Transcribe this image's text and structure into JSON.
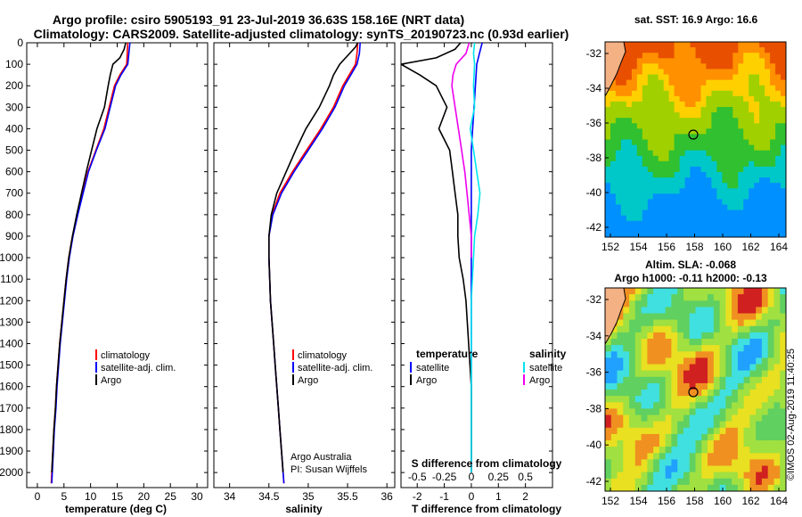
{
  "title_line1": "Argo profile: csiro 5905193_91 23-Jul-2019 36.63S 158.16E (NRT data)",
  "title_line2": "Climatology: CARS2009. Satellite-adjusted climatology: synTS_20190723.nc (0.93d earlier)",
  "credit_line1": "Argo Australia",
  "credit_line2": "PI: Susan Wijffels",
  "stamp": "©IMOS 02-Aug-2019 11:40:25",
  "colors": {
    "climatology": "#ff0000",
    "satellite": "#0000ff",
    "argo": "#000000",
    "cyan": "#00e5ee",
    "magenta": "#ee00ee"
  },
  "depth_ticks": [
    "0",
    "100",
    "200",
    "300",
    "400",
    "500",
    "600",
    "700",
    "800",
    "900",
    "1000",
    "1100",
    "1200",
    "1300",
    "1400",
    "1500",
    "1600",
    "1700",
    "1800",
    "1900",
    "2000"
  ],
  "chart_data": [
    {
      "type": "line",
      "name": "temperature",
      "xlabel": "temperature (deg C)",
      "xlim": [
        -2,
        32
      ],
      "ylim": [
        2070,
        0
      ],
      "xticks": [
        "0",
        "5",
        "10",
        "15",
        "20",
        "25",
        "30"
      ],
      "legend": [
        "climatology",
        "satellite-adj. clim.",
        "Argo"
      ],
      "series": [
        {
          "name": "climatology",
          "color": "#ff0000",
          "points": [
            [
              17,
              0
            ],
            [
              16.9,
              50
            ],
            [
              16.8,
              100
            ],
            [
              15.5,
              150
            ],
            [
              14.5,
              200
            ],
            [
              13.5,
              300
            ],
            [
              12.5,
              400
            ],
            [
              11,
              500
            ],
            [
              9.5,
              600
            ],
            [
              8.5,
              700
            ],
            [
              7.5,
              800
            ],
            [
              6.6,
              900
            ],
            [
              5.9,
              1000
            ],
            [
              5.4,
              1100
            ],
            [
              5,
              1200
            ],
            [
              4.6,
              1300
            ],
            [
              4.2,
              1400
            ],
            [
              3.9,
              1500
            ],
            [
              3.6,
              1600
            ],
            [
              3.4,
              1700
            ],
            [
              3.1,
              1800
            ],
            [
              2.9,
              1900
            ],
            [
              2.7,
              2000
            ],
            [
              2.6,
              2050
            ]
          ]
        },
        {
          "name": "satellite-adj. clim.",
          "color": "#0000ff",
          "points": [
            [
              17.4,
              0
            ],
            [
              17.2,
              50
            ],
            [
              17,
              100
            ],
            [
              15.7,
              150
            ],
            [
              14.7,
              200
            ],
            [
              13.7,
              300
            ],
            [
              12.7,
              400
            ],
            [
              11.1,
              500
            ],
            [
              9.6,
              600
            ],
            [
              8.6,
              700
            ],
            [
              7.6,
              800
            ],
            [
              6.7,
              900
            ],
            [
              6,
              1000
            ],
            [
              5.5,
              1100
            ],
            [
              5.1,
              1200
            ],
            [
              4.7,
              1300
            ],
            [
              4.3,
              1400
            ],
            [
              4,
              1500
            ],
            [
              3.7,
              1600
            ],
            [
              3.5,
              1700
            ],
            [
              3.2,
              1800
            ],
            [
              3,
              1900
            ],
            [
              2.8,
              2000
            ],
            [
              2.7,
              2050
            ]
          ]
        },
        {
          "name": "Argo",
          "color": "#000000",
          "points": [
            [
              16.6,
              0
            ],
            [
              16.3,
              30
            ],
            [
              15.5,
              70
            ],
            [
              14.2,
              100
            ],
            [
              13.7,
              150
            ],
            [
              13.3,
              200
            ],
            [
              12.6,
              300
            ],
            [
              11.2,
              400
            ],
            [
              10.2,
              500
            ],
            [
              9.2,
              600
            ],
            [
              8.3,
              700
            ],
            [
              7.4,
              800
            ],
            [
              6.6,
              900
            ],
            [
              5.9,
              1000
            ],
            [
              5.4,
              1100
            ],
            [
              5,
              1200
            ],
            [
              4.6,
              1300
            ],
            [
              4.2,
              1400
            ],
            [
              3.9,
              1500
            ],
            [
              3.6,
              1600
            ],
            [
              3.4,
              1700
            ],
            [
              3.1,
              1800
            ],
            [
              2.9,
              1900
            ],
            [
              2.7,
              2000
            ]
          ]
        }
      ]
    },
    {
      "type": "line",
      "name": "salinity",
      "xlabel": "salinity",
      "xlim": [
        33.8,
        36.1
      ],
      "ylim": [
        2070,
        0
      ],
      "xticks": [
        "34",
        "34.5",
        "35",
        "35.5",
        "36"
      ],
      "legend": [
        "climatology",
        "satellite-adj. clim.",
        "Argo"
      ],
      "series": [
        {
          "name": "climatology",
          "color": "#ff0000",
          "points": [
            [
              35.63,
              0
            ],
            [
              35.62,
              50
            ],
            [
              35.6,
              100
            ],
            [
              35.52,
              150
            ],
            [
              35.44,
              200
            ],
            [
              35.32,
              300
            ],
            [
              35.16,
              400
            ],
            [
              34.98,
              500
            ],
            [
              34.8,
              600
            ],
            [
              34.64,
              700
            ],
            [
              34.54,
              800
            ],
            [
              34.5,
              900
            ],
            [
              34.5,
              1000
            ],
            [
              34.51,
              1100
            ],
            [
              34.52,
              1200
            ],
            [
              34.54,
              1300
            ],
            [
              34.56,
              1400
            ],
            [
              34.58,
              1500
            ],
            [
              34.6,
              1600
            ],
            [
              34.62,
              1700
            ],
            [
              34.64,
              1800
            ],
            [
              34.66,
              1900
            ],
            [
              34.68,
              2000
            ],
            [
              34.69,
              2050
            ]
          ]
        },
        {
          "name": "satellite-adj. clim.",
          "color": "#0000ff",
          "points": [
            [
              35.66,
              0
            ],
            [
              35.65,
              50
            ],
            [
              35.62,
              100
            ],
            [
              35.54,
              150
            ],
            [
              35.46,
              200
            ],
            [
              35.34,
              300
            ],
            [
              35.18,
              400
            ],
            [
              35,
              500
            ],
            [
              34.82,
              600
            ],
            [
              34.66,
              700
            ],
            [
              34.55,
              800
            ],
            [
              34.5,
              900
            ],
            [
              34.5,
              1000
            ],
            [
              34.51,
              1100
            ],
            [
              34.52,
              1200
            ],
            [
              34.54,
              1300
            ],
            [
              34.56,
              1400
            ],
            [
              34.58,
              1500
            ],
            [
              34.6,
              1600
            ],
            [
              34.62,
              1700
            ],
            [
              34.64,
              1800
            ],
            [
              34.66,
              1900
            ],
            [
              34.68,
              2000
            ],
            [
              34.69,
              2050
            ]
          ]
        },
        {
          "name": "Argo",
          "color": "#000000",
          "points": [
            [
              35.63,
              0
            ],
            [
              35.6,
              20
            ],
            [
              35.5,
              60
            ],
            [
              35.4,
              100
            ],
            [
              35.32,
              150
            ],
            [
              35.27,
              200
            ],
            [
              35.14,
              300
            ],
            [
              34.97,
              400
            ],
            [
              34.84,
              500
            ],
            [
              34.72,
              600
            ],
            [
              34.6,
              700
            ],
            [
              34.53,
              800
            ],
            [
              34.5,
              900
            ],
            [
              34.5,
              1000
            ],
            [
              34.51,
              1100
            ],
            [
              34.52,
              1200
            ],
            [
              34.54,
              1300
            ],
            [
              34.56,
              1400
            ],
            [
              34.58,
              1500
            ],
            [
              34.6,
              1600
            ],
            [
              34.62,
              1700
            ],
            [
              34.64,
              1800
            ],
            [
              34.66,
              1900
            ],
            [
              34.68,
              2000
            ]
          ]
        }
      ]
    },
    {
      "type": "line",
      "name": "differences",
      "xlabel": "T difference from climatology",
      "xlabel_top": "S difference from climatology",
      "xlim": [
        -2.6,
        3
      ],
      "ylim": [
        2070,
        0
      ],
      "xticks": [
        "-2",
        "-1",
        "0",
        "1",
        "2"
      ],
      "xticks_top": [
        "-0.5",
        "-0.25",
        "0",
        "0.25",
        "0.5"
      ],
      "legend_left_title": "temperature",
      "legend_left": [
        "satellite",
        "Argo"
      ],
      "legend_right_title": "salinity",
      "legend_right": [
        "satellite",
        "Argo"
      ],
      "series": [
        {
          "name": "T satellite",
          "color": "#0000ff",
          "points": [
            [
              0.4,
              0
            ],
            [
              0.3,
              50
            ],
            [
              0.2,
              100
            ],
            [
              0.15,
              200
            ],
            [
              0.1,
              300
            ],
            [
              0.05,
              400
            ],
            [
              0,
              500
            ],
            [
              0,
              700
            ],
            [
              0,
              1000
            ],
            [
              0,
              1500
            ],
            [
              0,
              2000
            ]
          ]
        },
        {
          "name": "T Argo",
          "color": "#000000",
          "points": [
            [
              -0.4,
              0
            ],
            [
              -0.6,
              30
            ],
            [
              -1.3,
              70
            ],
            [
              -2.6,
              100
            ],
            [
              -1.9,
              150
            ],
            [
              -1.3,
              200
            ],
            [
              -0.9,
              300
            ],
            [
              -1.2,
              400
            ],
            [
              -0.8,
              500
            ],
            [
              -0.7,
              600
            ],
            [
              -0.6,
              700
            ],
            [
              -0.5,
              800
            ],
            [
              -0.5,
              900
            ],
            [
              -0.45,
              1000
            ],
            [
              -0.3,
              1100
            ],
            [
              -0.2,
              1200
            ],
            [
              -0.15,
              1300
            ],
            [
              -0.1,
              1400
            ],
            [
              -0.05,
              1500
            ],
            [
              0,
              1600
            ],
            [
              0,
              1800
            ],
            [
              0,
              2000
            ]
          ]
        },
        {
          "name": "S satellite",
          "color": "#00e5ee",
          "points": [
            [
              0.03,
              0
            ],
            [
              0.02,
              50
            ],
            [
              0.03,
              100
            ],
            [
              0.02,
              200
            ],
            [
              0.03,
              300
            ],
            [
              -0.01,
              400
            ],
            [
              0.02,
              500
            ],
            [
              0.05,
              600
            ],
            [
              0.08,
              700
            ],
            [
              0.06,
              800
            ],
            [
              0.03,
              900
            ],
            [
              0.02,
              1000
            ],
            [
              0.01,
              1100
            ],
            [
              0,
              1200
            ],
            [
              0,
              1500
            ],
            [
              0,
              2000
            ]
          ]
        },
        {
          "name": "S Argo",
          "color": "#ee00ee",
          "points": [
            [
              -0.02,
              0
            ],
            [
              -0.05,
              50
            ],
            [
              -0.14,
              100
            ],
            [
              -0.17,
              150
            ],
            [
              -0.18,
              200
            ],
            [
              -0.15,
              300
            ],
            [
              -0.12,
              400
            ],
            [
              -0.09,
              500
            ],
            [
              -0.06,
              600
            ],
            [
              -0.04,
              700
            ],
            [
              -0.02,
              800
            ],
            [
              0,
              900
            ],
            [
              0,
              1000
            ]
          ]
        }
      ]
    }
  ],
  "maps": [
    {
      "title": "sat. SST: 16.9 Argo: 16.6",
      "yticks": [
        "-32",
        "-34",
        "-36",
        "-38",
        "-40",
        "-42"
      ],
      "xticks": [
        "152",
        "154",
        "156",
        "158",
        "160",
        "162",
        "164"
      ],
      "marker": "Argo float position 36.63S 158.16E"
    },
    {
      "title": "Altim. SLA: -0.068",
      "subtitle": "Argo h1000: -0.11 h2000: -0.13",
      "yticks": [
        "-32",
        "-34",
        "-36",
        "-38",
        "-40",
        "-42"
      ],
      "xticks": [
        "152",
        "154",
        "156",
        "158",
        "160",
        "162",
        "164"
      ],
      "marker": "Argo float position 36.63S 158.16E"
    }
  ]
}
